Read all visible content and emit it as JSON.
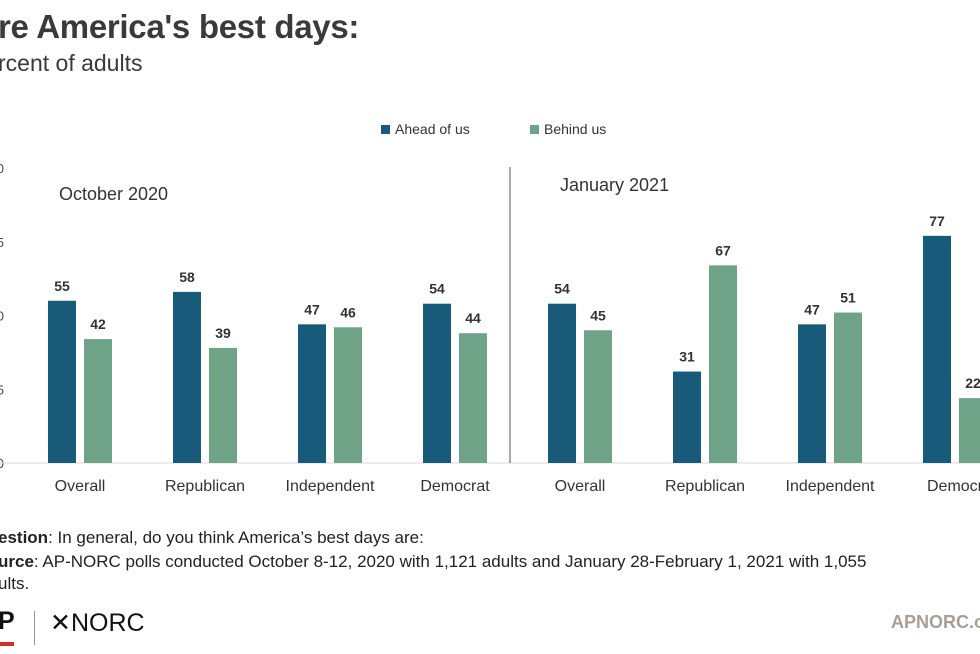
{
  "header": {
    "title": "re America's best days:",
    "subtitle": "rcent of adults"
  },
  "legend": [
    {
      "label": "Ahead of us",
      "color": "#175a7a"
    },
    {
      "label": "Behind us",
      "color": "#6ea388"
    }
  ],
  "chart_data": {
    "type": "bar",
    "ylim": [
      0,
      100
    ],
    "y_tick_labels": [
      "0",
      "5",
      "0",
      "5",
      "0"
    ],
    "grid": false,
    "legend_position": "top-center",
    "panels": [
      {
        "label": "October 2020",
        "categories": [
          "Overall",
          "Republican",
          "Independent",
          "Democrat"
        ],
        "series": [
          {
            "name": "Ahead of us",
            "values": [
              55,
              58,
              47,
              54
            ]
          },
          {
            "name": "Behind us",
            "values": [
              42,
              39,
              46,
              44
            ]
          }
        ]
      },
      {
        "label": "January 2021",
        "categories": [
          "Overall",
          "Republican",
          "Independent",
          "Democr"
        ],
        "series": [
          {
            "name": "Ahead of us",
            "values": [
              54,
              31,
              47,
              77
            ]
          },
          {
            "name": "Behind us",
            "values": [
              45,
              67,
              51,
              22
            ]
          }
        ]
      }
    ]
  },
  "notes": {
    "question_label": "estion",
    "question_text": ": In general, do you think America’s best days are:",
    "source_label": "urce",
    "source_text": ": AP-NORC polls conducted October 8-12, 2020 with 1,121 adults and January 28-February 1, 2021 with 1,055",
    "source_text_cont": "ults."
  },
  "footer": {
    "ap_logo": "P",
    "norc_logo": "✕NORC",
    "url": "APNORC.o"
  }
}
